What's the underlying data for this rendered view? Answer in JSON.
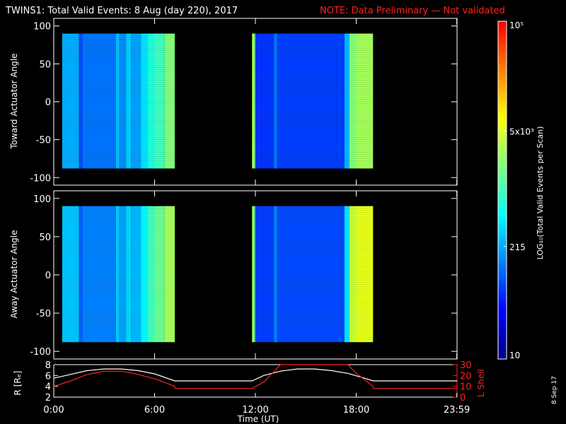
{
  "title": {
    "main": "TWINS1: Total Valid Events:  8 Aug (day 220), 2017",
    "note": "NOTE: Data Preliminary — Not validated"
  },
  "stamp": "8 Sep 17",
  "xaxis": {
    "label": "Time (UT)",
    "range": [
      0,
      24
    ],
    "ticks": [
      0,
      6,
      12,
      18,
      23.983
    ],
    "tick_labels": [
      "0:00",
      "6:00",
      "12:00",
      "18:00",
      "23:59"
    ]
  },
  "colorbar": {
    "label": "LOG₁₀(Total Valid Events per Scan)",
    "scale": "log",
    "range": [
      10,
      100000
    ],
    "ticks": [
      10,
      215,
      5000,
      100000
    ],
    "tick_labels": [
      "10",
      "215",
      "5x10³",
      "10⁵"
    ],
    "colors": [
      "#00007f",
      "#0000ff",
      "#007fff",
      "#00ffff",
      "#7fff7f",
      "#ffff00",
      "#ff7f00",
      "#ff0000"
    ]
  },
  "chart_data": [
    {
      "type": "heatmap",
      "name": "toward",
      "ylabel": "Toward Actuator Angle",
      "yrange": [
        -110,
        110
      ],
      "yticks": [
        100,
        50,
        0,
        -50,
        -100
      ],
      "data_yrange": [
        -88,
        90
      ],
      "data_xrange": [
        [
          0.5,
          7.2
        ],
        [
          11.8,
          19.0
        ]
      ],
      "columns": [
        {
          "x": [
            0.5,
            1.5
          ],
          "value": 2.35
        },
        {
          "x": [
            1.5,
            1.7
          ],
          "value": 1.9
        },
        {
          "x": [
            1.7,
            3.7
          ],
          "value": 2.1
        },
        {
          "x": [
            3.7,
            3.9
          ],
          "value": 2.45
        },
        {
          "x": [
            3.9,
            4.3
          ],
          "value": 2.2
        },
        {
          "x": [
            4.3,
            4.6
          ],
          "value": 2.5
        },
        {
          "x": [
            4.6,
            5.2
          ],
          "value": 2.3
        },
        {
          "x": [
            5.2,
            5.6
          ],
          "value": 2.6
        },
        {
          "x": [
            5.6,
            6.0
          ],
          "value": 2.85
        },
        {
          "x": [
            6.0,
            6.6
          ],
          "value": 3.0
        },
        {
          "x": [
            6.6,
            7.2
          ],
          "value": 3.3
        },
        {
          "x": [
            11.8,
            11.95
          ],
          "value": 3.6
        },
        {
          "x": [
            11.95,
            12.0
          ],
          "value": 2.6
        },
        {
          "x": [
            12.0,
            13.1
          ],
          "value": 1.8
        },
        {
          "x": [
            13.1,
            13.3
          ],
          "value": 2.1
        },
        {
          "x": [
            13.3,
            17.3
          ],
          "value": 1.85
        },
        {
          "x": [
            17.3,
            17.6
          ],
          "value": 2.4
        },
        {
          "x": [
            17.6,
            18.0
          ],
          "value": 3.3
        },
        {
          "x": [
            18.0,
            19.0
          ],
          "value": 3.45
        }
      ]
    },
    {
      "type": "heatmap",
      "name": "away",
      "ylabel": "Away Actuator Angle",
      "yrange": [
        -110,
        110
      ],
      "yticks": [
        100,
        50,
        0,
        -50,
        -100
      ],
      "data_yrange": [
        -88,
        90
      ],
      "data_xrange": [
        [
          0.5,
          7.2
        ],
        [
          11.8,
          19.0
        ]
      ],
      "columns": [
        {
          "x": [
            0.5,
            1.5
          ],
          "value": 2.45
        },
        {
          "x": [
            1.5,
            1.7
          ],
          "value": 2.0
        },
        {
          "x": [
            1.7,
            3.7
          ],
          "value": 2.15
        },
        {
          "x": [
            3.7,
            3.9
          ],
          "value": 2.5
        },
        {
          "x": [
            3.9,
            4.3
          ],
          "value": 2.3
        },
        {
          "x": [
            4.3,
            4.6
          ],
          "value": 2.55
        },
        {
          "x": [
            4.6,
            5.2
          ],
          "value": 2.4
        },
        {
          "x": [
            5.2,
            5.6
          ],
          "value": 2.7
        },
        {
          "x": [
            5.6,
            6.0
          ],
          "value": 3.0
        },
        {
          "x": [
            6.0,
            6.6
          ],
          "value": 3.2
        },
        {
          "x": [
            6.6,
            7.2
          ],
          "value": 3.45
        },
        {
          "x": [
            11.8,
            11.95
          ],
          "value": 3.5
        },
        {
          "x": [
            11.95,
            12.0
          ],
          "value": 2.5
        },
        {
          "x": [
            12.0,
            13.1
          ],
          "value": 1.85
        },
        {
          "x": [
            13.1,
            13.3
          ],
          "value": 2.15
        },
        {
          "x": [
            13.3,
            17.3
          ],
          "value": 1.9
        },
        {
          "x": [
            17.3,
            17.6
          ],
          "value": 2.6
        },
        {
          "x": [
            17.6,
            18.0
          ],
          "value": 3.6
        },
        {
          "x": [
            18.0,
            19.0
          ],
          "value": 3.75
        }
      ]
    },
    {
      "type": "line",
      "name": "orbit",
      "ylabel_left": "R [Rₑ]",
      "ylabel_right": "L Shell",
      "yrange_left": [
        2,
        8
      ],
      "yticks_left": [
        2,
        4,
        6,
        8
      ],
      "yrange_right": [
        0,
        30
      ],
      "yticks_right": [
        0,
        10,
        20,
        30
      ],
      "series": [
        {
          "axis": "left",
          "color": "#ffffff",
          "x": [
            0,
            1,
            2,
            3,
            4,
            5,
            6,
            7.2,
            11.8,
            12.5,
            13.5,
            14.5,
            15.5,
            16.5,
            17.5,
            18.5,
            19.0,
            24
          ],
          "y": [
            5.5,
            6.2,
            6.9,
            7.2,
            7.2,
            6.9,
            6.3,
            5.0,
            5.0,
            6.0,
            6.8,
            7.2,
            7.2,
            6.9,
            6.4,
            5.5,
            5.0,
            5.0
          ]
        },
        {
          "axis": "right",
          "color": "#ff2020",
          "x": [
            0,
            1,
            2,
            3,
            4,
            5,
            6,
            7.2,
            7.2,
            11.8,
            12.5,
            13.0,
            13.5,
            17.5,
            18.0,
            19.0,
            19.0,
            24
          ],
          "y": [
            10,
            15,
            21,
            24,
            24,
            21,
            17,
            10,
            8,
            8,
            14,
            22,
            30,
            30,
            22,
            10,
            8,
            8
          ]
        }
      ]
    }
  ]
}
